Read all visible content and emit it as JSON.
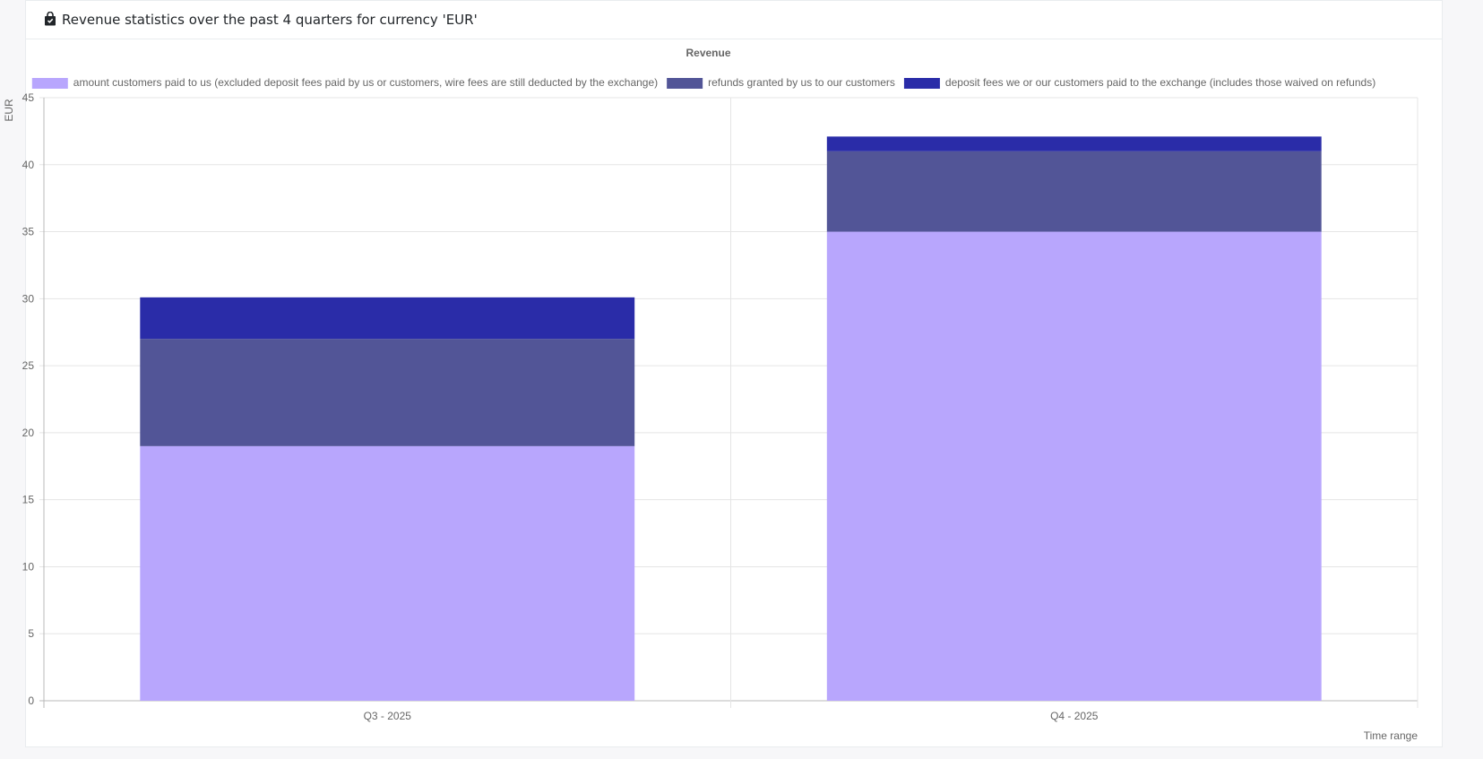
{
  "header": {
    "title": "Revenue statistics over the past 4 quarters for currency 'EUR'",
    "icon": "shopping-bag-icon"
  },
  "chart_data": {
    "type": "bar",
    "stacked": true,
    "title": "Revenue",
    "xlabel": "Time range",
    "ylabel": "EUR",
    "ylim": [
      0,
      45
    ],
    "yticks": [
      0,
      5,
      10,
      15,
      20,
      25,
      30,
      35,
      40,
      45
    ],
    "categories": [
      "Q3 - 2025",
      "Q4 - 2025"
    ],
    "legend_position": "top",
    "grid": true,
    "series": [
      {
        "name": "amount customers paid to us (excluded deposit fees paid by us or customers, wire fees are still deducted by the exchange)",
        "color": "#b8a6fd",
        "values": [
          19,
          35
        ]
      },
      {
        "name": "refunds granted by us to our customers",
        "color": "#525597",
        "values": [
          8,
          6
        ]
      },
      {
        "name": "deposit fees we or our customers paid to the exchange (includes those waived on refunds)",
        "color": "#2a2ca8",
        "values": [
          3.1,
          1.1
        ]
      }
    ]
  }
}
